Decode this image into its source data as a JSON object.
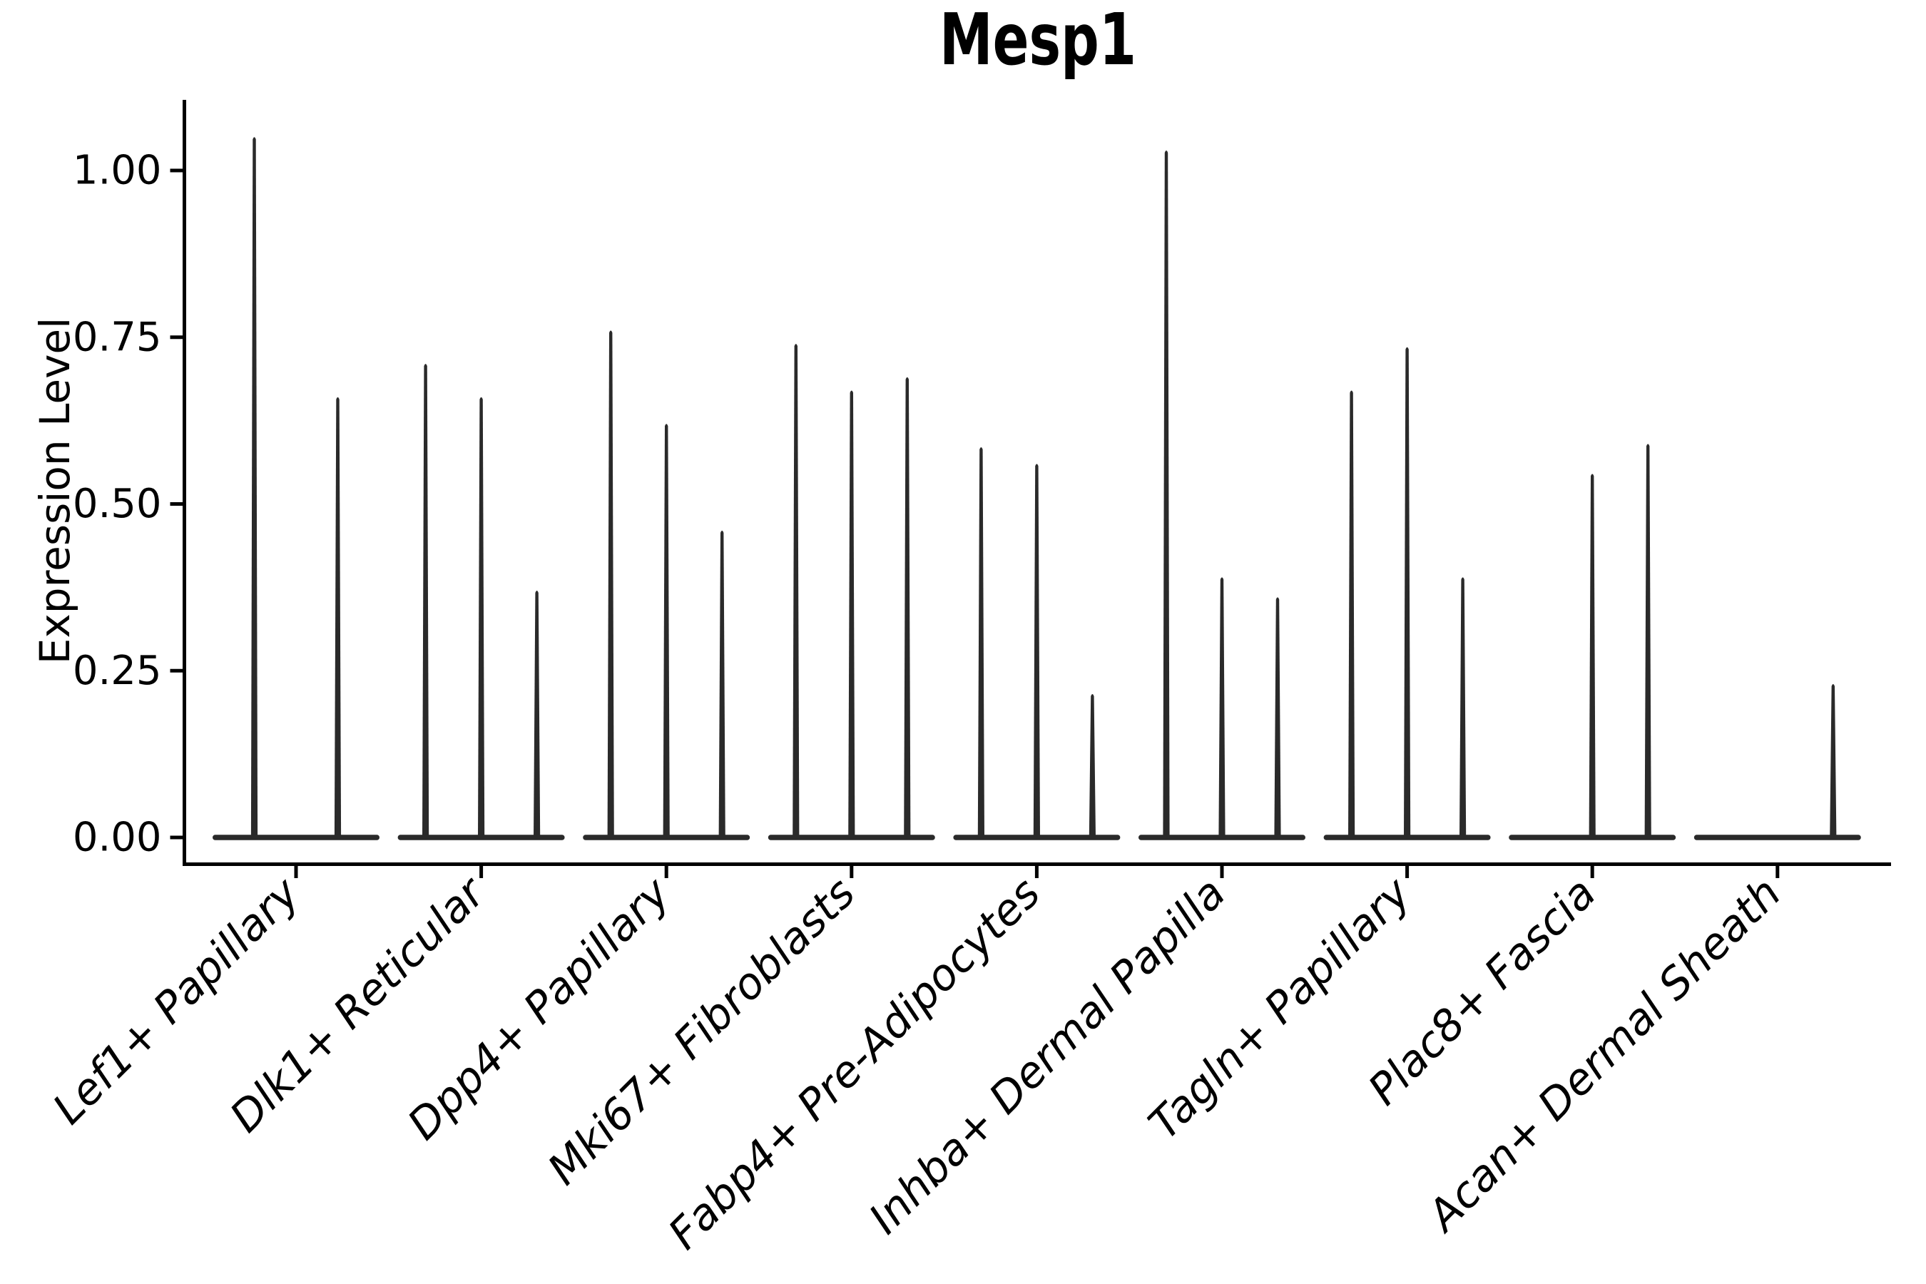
{
  "title": "Mesp1",
  "ylabel": "Expression Level",
  "colors": {
    "background": "#ffffff",
    "ink": "#2a2a2a",
    "axis": "#000000",
    "text": "#000000"
  },
  "chart_data": {
    "type": "violin",
    "title": "Mesp1",
    "xlabel": "",
    "ylabel": "Expression Level",
    "ylim": [
      0,
      1.11
    ],
    "grid": false,
    "legend": false,
    "yticks": [
      0,
      0.25,
      0.5,
      0.75,
      1.0
    ],
    "ytick_labels": [
      "0.00",
      "0.25",
      "0.50",
      "0.75",
      "1.00"
    ],
    "categories": [
      "Lef1+ Papillary",
      "Dlk1+ Reticular",
      "Dpp4+ Papillary",
      "Mki67+ Fibroblasts",
      "Fabp4+ Pre-Adipocytes",
      "Inhba+ Dermal Papilla",
      "Tagln+ Papillary",
      "Plac8+ Fascia",
      "Acan+ Dermal Sheath"
    ],
    "violins": [
      [
        1.05,
        0.66
      ],
      [
        0.71,
        0.66,
        0.37
      ],
      [
        0.76,
        0.62,
        0.46
      ],
      [
        0.74,
        0.67,
        0.69
      ],
      [
        0.585,
        0.56,
        0.215
      ],
      [
        1.03,
        0.39,
        0.36
      ],
      [
        0.67,
        0.735,
        0.39
      ],
      [
        0,
        0.545,
        0.59
      ],
      [
        0,
        0,
        0.23
      ]
    ]
  }
}
